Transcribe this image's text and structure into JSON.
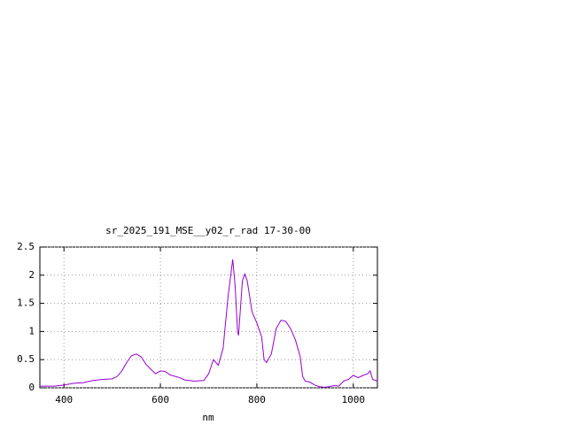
{
  "chart_data": {
    "type": "line",
    "title": "sr_2025_191_MSE__y02_r_rad 17-30-00",
    "x_label": "nm",
    "x": [
      350,
      380,
      400,
      420,
      440,
      460,
      480,
      500,
      510,
      520,
      530,
      540,
      550,
      560,
      570,
      580,
      590,
      600,
      610,
      620,
      640,
      650,
      670,
      690,
      700,
      710,
      715,
      720,
      730,
      740,
      750,
      755,
      760,
      762,
      770,
      775,
      780,
      790,
      800,
      810,
      815,
      820,
      830,
      840,
      850,
      860,
      870,
      880,
      890,
      895,
      900,
      910,
      920,
      930,
      940,
      950,
      960,
      970,
      980,
      990,
      1000,
      1010,
      1020,
      1030,
      1035,
      1040,
      1050
    ],
    "series": [
      {
        "color": "#9400d3",
        "values": [
          0.03,
          0.03,
          0.05,
          0.08,
          0.09,
          0.13,
          0.15,
          0.16,
          0.2,
          0.3,
          0.45,
          0.57,
          0.6,
          0.55,
          0.42,
          0.33,
          0.25,
          0.3,
          0.29,
          0.23,
          0.18,
          0.14,
          0.12,
          0.13,
          0.25,
          0.5,
          0.45,
          0.4,
          0.7,
          1.6,
          2.28,
          1.8,
          1.0,
          0.93,
          1.9,
          2.02,
          1.9,
          1.35,
          1.15,
          0.9,
          0.5,
          0.45,
          0.6,
          1.05,
          1.2,
          1.18,
          1.05,
          0.85,
          0.55,
          0.2,
          0.12,
          0.1,
          0.05,
          0.02,
          0.01,
          0.02,
          0.04,
          0.03,
          0.12,
          0.15,
          0.22,
          0.18,
          0.22,
          0.25,
          0.3,
          0.15,
          0.12
        ]
      }
    ],
    "xlim": [
      350,
      1050
    ],
    "xticks": [
      400,
      600,
      800,
      1000
    ],
    "ylim": [
      0,
      2.5
    ],
    "yticks": [
      0,
      0.5,
      1,
      1.5,
      2,
      2.5
    ],
    "grid": true
  }
}
